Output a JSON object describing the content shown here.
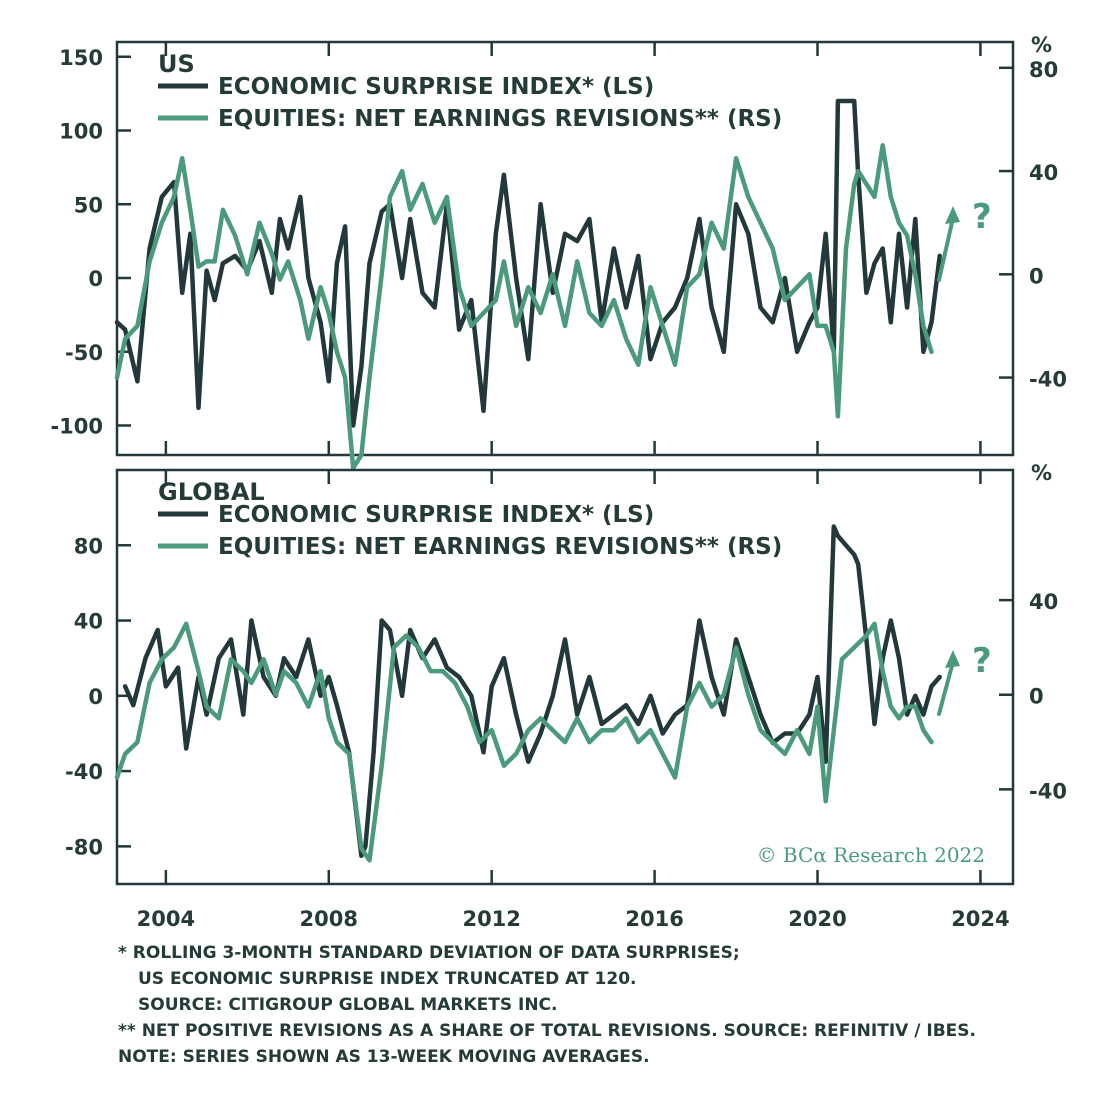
{
  "chart_data": [
    {
      "type": "line",
      "title": "US",
      "left_ylim": [
        -120,
        160
      ],
      "right_ylim": [
        -70,
        90
      ],
      "left_ticks": [
        "150",
        "100",
        "50",
        "0",
        "-50",
        "-100"
      ],
      "right_ticks": [
        "80",
        "40",
        "0",
        "-40"
      ],
      "right_unit": "%",
      "xlim": [
        2002.8,
        2024.8
      ],
      "series": [
        {
          "name": "ECONOMIC SURPRISE INDEX* (LS)",
          "axis": "left",
          "color": "#22383a",
          "x": [
            2002.8,
            2003.0,
            2003.3,
            2003.6,
            2003.9,
            2004.2,
            2004.4,
            2004.6,
            2004.8,
            2005.0,
            2005.2,
            2005.4,
            2005.7,
            2006.0,
            2006.3,
            2006.6,
            2006.8,
            2007.0,
            2007.3,
            2007.5,
            2007.8,
            2008.0,
            2008.2,
            2008.4,
            2008.6,
            2008.8,
            2009.0,
            2009.3,
            2009.5,
            2009.8,
            2010.0,
            2010.3,
            2010.6,
            2010.9,
            2011.2,
            2011.5,
            2011.8,
            2012.1,
            2012.3,
            2012.6,
            2012.9,
            2013.2,
            2013.5,
            2013.8,
            2014.1,
            2014.4,
            2014.7,
            2015.0,
            2015.3,
            2015.6,
            2015.9,
            2016.2,
            2016.5,
            2016.8,
            2017.1,
            2017.4,
            2017.7,
            2018.0,
            2018.3,
            2018.6,
            2018.9,
            2019.2,
            2019.5,
            2019.8,
            2020.0,
            2020.2,
            2020.4,
            2020.5,
            2020.7,
            2020.9,
            2021.0,
            2021.2,
            2021.4,
            2021.6,
            2021.8,
            2022.0,
            2022.2,
            2022.4,
            2022.6,
            2022.8,
            2023.0
          ],
          "y": [
            -30,
            -35,
            -70,
            20,
            55,
            65,
            -10,
            30,
            -88,
            5,
            -15,
            10,
            15,
            5,
            25,
            -10,
            40,
            20,
            55,
            0,
            -30,
            -70,
            10,
            35,
            -100,
            -60,
            10,
            45,
            50,
            0,
            40,
            -10,
            -20,
            50,
            -35,
            -15,
            -90,
            30,
            70,
            0,
            -55,
            50,
            -10,
            30,
            25,
            40,
            -30,
            20,
            -20,
            15,
            -55,
            -30,
            -20,
            0,
            40,
            -20,
            -50,
            50,
            30,
            -20,
            -30,
            0,
            -50,
            -30,
            -20,
            30,
            -50,
            120,
            120,
            120,
            70,
            -10,
            10,
            20,
            -30,
            30,
            -20,
            40,
            -50,
            -30,
            15
          ]
        },
        {
          "name": "EQUITIES: NET EARNINGS REVISIONS** (RS)",
          "axis": "right",
          "color": "#4c9a7c",
          "x": [
            2002.8,
            2003.0,
            2003.3,
            2003.6,
            2003.9,
            2004.2,
            2004.4,
            2004.6,
            2004.8,
            2005.0,
            2005.2,
            2005.4,
            2005.7,
            2006.0,
            2006.3,
            2006.6,
            2006.8,
            2007.0,
            2007.3,
            2007.5,
            2007.8,
            2008.0,
            2008.2,
            2008.4,
            2008.6,
            2008.8,
            2009.0,
            2009.3,
            2009.5,
            2009.8,
            2010.0,
            2010.3,
            2010.6,
            2010.9,
            2011.2,
            2011.5,
            2011.8,
            2012.1,
            2012.3,
            2012.6,
            2012.9,
            2013.2,
            2013.5,
            2013.8,
            2014.1,
            2014.4,
            2014.7,
            2015.0,
            2015.3,
            2015.6,
            2015.9,
            2016.2,
            2016.5,
            2016.8,
            2017.1,
            2017.4,
            2017.7,
            2018.0,
            2018.3,
            2018.6,
            2018.9,
            2019.2,
            2019.5,
            2019.8,
            2020.0,
            2020.2,
            2020.4,
            2020.5,
            2020.7,
            2020.9,
            2021.0,
            2021.2,
            2021.4,
            2021.6,
            2021.8,
            2022.0,
            2022.2,
            2022.4,
            2022.6,
            2022.8
          ],
          "y": [
            -40,
            -25,
            -20,
            5,
            20,
            30,
            45,
            25,
            3,
            5,
            5,
            25,
            15,
            0,
            20,
            8,
            -2,
            5,
            -10,
            -25,
            -5,
            -15,
            -30,
            -40,
            -75,
            -70,
            -40,
            0,
            30,
            40,
            25,
            35,
            20,
            30,
            -5,
            -20,
            -15,
            -10,
            5,
            -20,
            -5,
            -15,
            0,
            -20,
            5,
            -15,
            -20,
            -10,
            -25,
            -35,
            -5,
            -20,
            -35,
            -5,
            0,
            20,
            10,
            45,
            30,
            20,
            10,
            -10,
            -5,
            0,
            -20,
            -20,
            -30,
            -55,
            10,
            35,
            40,
            35,
            30,
            50,
            30,
            20,
            15,
            0,
            -20,
            -30
          ]
        }
      ],
      "annotation": "?"
    },
    {
      "type": "line",
      "title": "GLOBAL",
      "left_ylim": [
        -100,
        120
      ],
      "right_ylim": [
        -80,
        95
      ],
      "left_ticks": [
        "80",
        "40",
        "0",
        "-40",
        "-80"
      ],
      "right_ticks": [
        "40",
        "0",
        "-40"
      ],
      "right_unit": "%",
      "xlim": [
        2002.8,
        2024.8
      ],
      "x_ticks": [
        "2004",
        "2008",
        "2012",
        "2016",
        "2020",
        "2024"
      ],
      "series": [
        {
          "name": "ECONOMIC SURPRISE INDEX* (LS)",
          "axis": "left",
          "color": "#22383a",
          "x": [
            2003.0,
            2003.2,
            2003.5,
            2003.8,
            2004.0,
            2004.3,
            2004.5,
            2004.8,
            2005.0,
            2005.3,
            2005.6,
            2005.9,
            2006.1,
            2006.4,
            2006.7,
            2006.9,
            2007.2,
            2007.5,
            2007.8,
            2008.0,
            2008.2,
            2008.5,
            2008.8,
            2008.9,
            2009.1,
            2009.3,
            2009.5,
            2009.8,
            2010.0,
            2010.3,
            2010.6,
            2010.9,
            2011.2,
            2011.5,
            2011.8,
            2012.0,
            2012.3,
            2012.6,
            2012.9,
            2013.2,
            2013.5,
            2013.8,
            2014.1,
            2014.4,
            2014.7,
            2015.0,
            2015.3,
            2015.6,
            2015.9,
            2016.2,
            2016.5,
            2016.8,
            2017.1,
            2017.4,
            2017.7,
            2018.0,
            2018.3,
            2018.6,
            2018.9,
            2019.2,
            2019.5,
            2019.8,
            2020.0,
            2020.2,
            2020.4,
            2020.5,
            2020.7,
            2020.9,
            2021.0,
            2021.2,
            2021.4,
            2021.6,
            2021.8,
            2022.0,
            2022.2,
            2022.4,
            2022.6,
            2022.8,
            2023.0
          ],
          "y": [
            5,
            -5,
            20,
            35,
            5,
            15,
            -28,
            10,
            -10,
            20,
            30,
            -10,
            40,
            10,
            0,
            20,
            10,
            30,
            0,
            10,
            -5,
            -30,
            -85,
            -80,
            -30,
            40,
            35,
            0,
            35,
            20,
            30,
            15,
            10,
            0,
            -30,
            5,
            20,
            -10,
            -35,
            -20,
            0,
            30,
            -10,
            10,
            -15,
            -10,
            -5,
            -15,
            0,
            -20,
            -10,
            -5,
            40,
            10,
            -10,
            30,
            10,
            -10,
            -25,
            -20,
            -20,
            -10,
            10,
            -35,
            90,
            85,
            80,
            75,
            70,
            30,
            -15,
            20,
            40,
            20,
            -10,
            0,
            -10,
            5,
            10
          ]
        },
        {
          "name": "EQUITIES: NET EARNINGS REVISIONS** (RS)",
          "axis": "right",
          "color": "#4c9a7c",
          "x": [
            2002.8,
            2003.0,
            2003.3,
            2003.6,
            2003.9,
            2004.2,
            2004.5,
            2004.8,
            2005.0,
            2005.3,
            2005.6,
            2005.9,
            2006.1,
            2006.4,
            2006.7,
            2006.9,
            2007.2,
            2007.5,
            2007.8,
            2008.0,
            2008.2,
            2008.5,
            2008.8,
            2009.0,
            2009.3,
            2009.6,
            2009.9,
            2010.2,
            2010.5,
            2010.8,
            2011.1,
            2011.4,
            2011.7,
            2012.0,
            2012.3,
            2012.6,
            2012.9,
            2013.2,
            2013.5,
            2013.8,
            2014.1,
            2014.4,
            2014.7,
            2015.0,
            2015.3,
            2015.6,
            2015.9,
            2016.2,
            2016.5,
            2016.8,
            2017.1,
            2017.4,
            2017.7,
            2018.0,
            2018.3,
            2018.6,
            2018.9,
            2019.2,
            2019.5,
            2019.8,
            2020.0,
            2020.2,
            2020.4,
            2020.6,
            2020.9,
            2021.2,
            2021.4,
            2021.6,
            2021.8,
            2022.0,
            2022.2,
            2022.4,
            2022.6,
            2022.8
          ],
          "y": [
            -35,
            -25,
            -20,
            5,
            15,
            20,
            30,
            10,
            -5,
            -10,
            15,
            10,
            5,
            15,
            0,
            10,
            5,
            -5,
            10,
            -10,
            -20,
            -25,
            -65,
            -70,
            -30,
            20,
            25,
            20,
            10,
            10,
            5,
            -5,
            -20,
            -15,
            -30,
            -25,
            -15,
            -10,
            -15,
            -20,
            -10,
            -20,
            -15,
            -15,
            -10,
            -20,
            -15,
            -25,
            -35,
            -5,
            5,
            -5,
            0,
            20,
            0,
            -15,
            -20,
            -25,
            -15,
            -25,
            -5,
            -45,
            -15,
            15,
            20,
            25,
            30,
            10,
            -5,
            -10,
            -5,
            -5,
            -15,
            -20
          ]
        }
      ],
      "annotation": "?"
    }
  ],
  "copyright": "© BCα Research 2022",
  "footnotes": [
    "* ROLLING 3-MONTH STANDARD DEVIATION OF DATA SURPRISES;",
    "US ECONOMIC SURPRISE INDEX TRUNCATED AT 120.",
    "SOURCE: CITIGROUP GLOBAL MARKETS INC.",
    "** NET POSITIVE REVISIONS AS A SHARE OF TOTAL REVISIONS. SOURCE: REFINITIV / IBES.",
    "NOTE: SERIES SHOWN AS 13-WEEK MOVING AVERAGES."
  ]
}
